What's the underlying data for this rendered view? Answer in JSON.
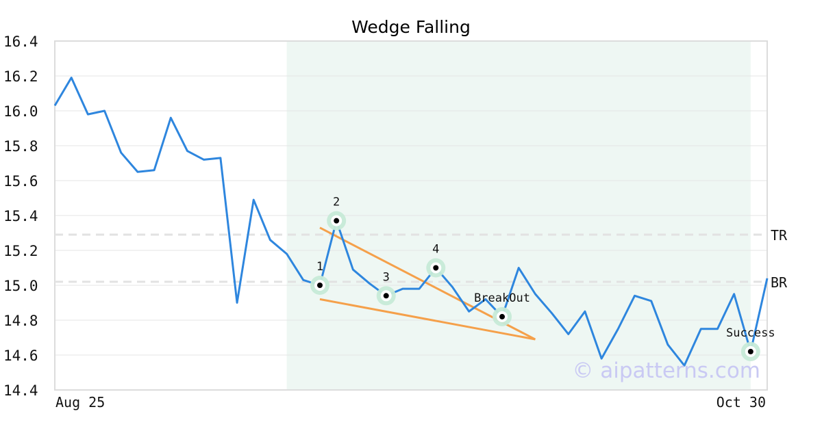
{
  "chart_data": {
    "type": "line",
    "title": "Wedge Falling",
    "x_start_label": "Aug 25",
    "x_end_label": "Oct 30",
    "ylim": [
      14.4,
      16.4
    ],
    "yticks": [
      "16.4",
      "16.2",
      "16.0",
      "15.8",
      "15.6",
      "15.4",
      "15.2",
      "15.0",
      "14.8",
      "14.6",
      "14.4"
    ],
    "grid": true,
    "series": [
      {
        "color": "#2e86de",
        "values": [
          16.03,
          16.19,
          15.98,
          16.0,
          15.76,
          15.65,
          15.66,
          15.96,
          15.77,
          15.72,
          15.73,
          14.9,
          15.49,
          15.26,
          15.18,
          15.03,
          15.0,
          15.37,
          15.09,
          15.01,
          14.94,
          14.98,
          14.98,
          15.1,
          14.99,
          14.85,
          14.92,
          14.82,
          15.1,
          14.95,
          14.84,
          14.72,
          14.85,
          14.58,
          14.75,
          14.94,
          14.91,
          14.66,
          14.54,
          14.75,
          14.75,
          14.95,
          14.62,
          15.04
        ]
      }
    ],
    "highlight_region": {
      "start_index": 14,
      "end_index": 42,
      "color": "#eef7f3"
    },
    "levels": [
      {
        "label": "TR",
        "value": 15.29
      },
      {
        "label": "BR",
        "value": 15.02
      }
    ],
    "markers": [
      {
        "label": "1",
        "index": 16,
        "value": 15.0
      },
      {
        "label": "2",
        "index": 17,
        "value": 15.37
      },
      {
        "label": "3",
        "index": 20,
        "value": 14.94
      },
      {
        "label": "4",
        "index": 23,
        "value": 15.1
      },
      {
        "label": "BreakOut",
        "index": 27,
        "value": 14.82
      },
      {
        "label": "Success",
        "index": 42,
        "value": 14.62
      }
    ],
    "trendlines": [
      {
        "from_index": 16,
        "from_value": 15.33,
        "to_index": 29,
        "to_value": 14.69
      },
      {
        "from_index": 16,
        "from_value": 14.92,
        "to_index": 29,
        "to_value": 14.69
      }
    ],
    "colors": {
      "line": "#2e86de",
      "trend": "#f5a04a",
      "marker_halo": "#c6ead7",
      "grid": "#e4e4e4",
      "level": "#e2e2e2"
    },
    "watermark": "© aipatterns.com"
  }
}
